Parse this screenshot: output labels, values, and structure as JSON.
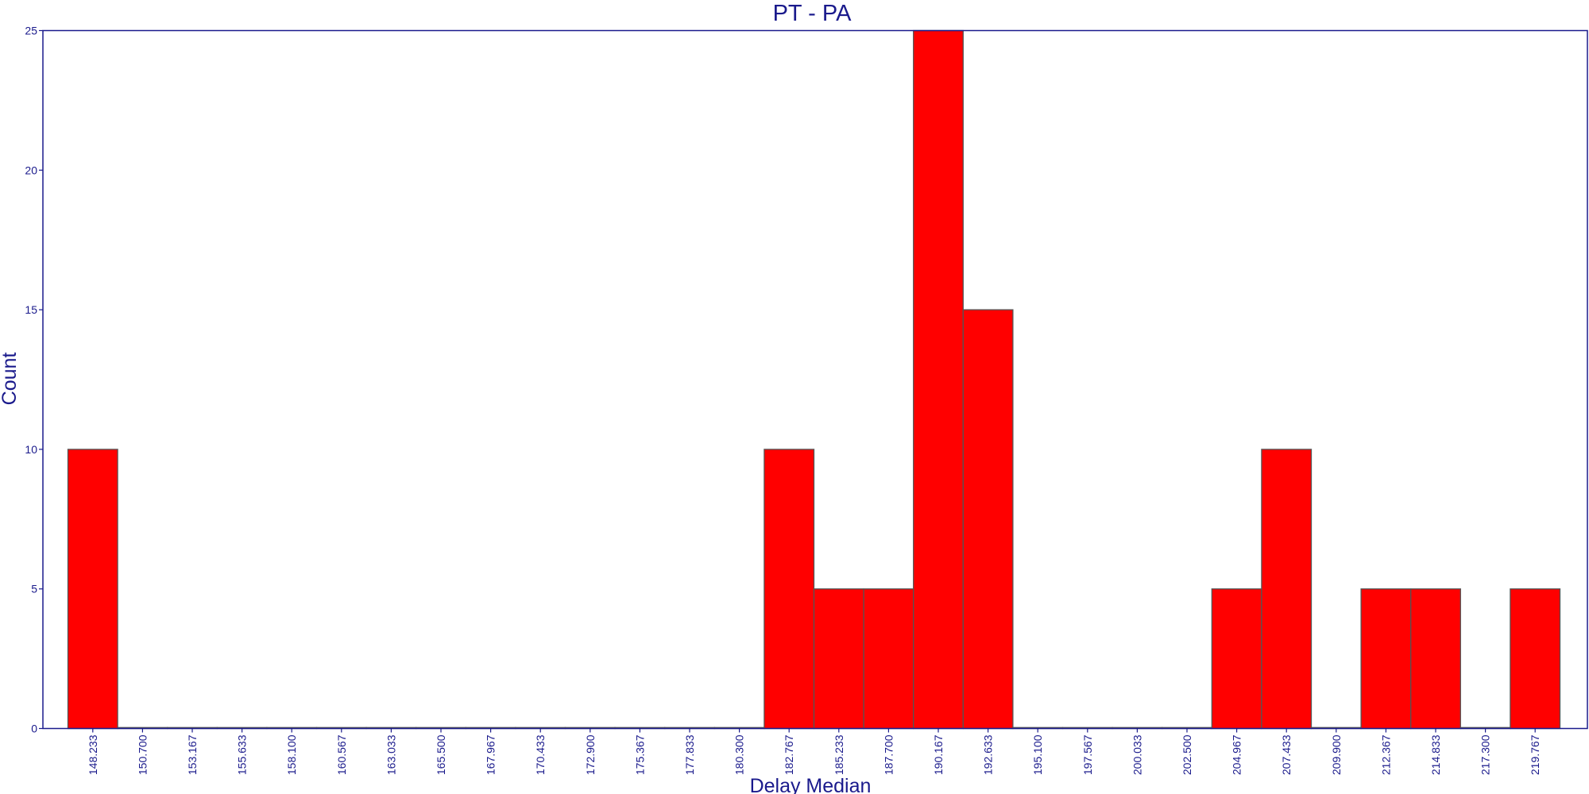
{
  "chart_data": {
    "type": "bar",
    "title": "PT - PA",
    "xlabel": "Delay Median",
    "ylabel": "Count",
    "categories": [
      "148.233",
      "150.700",
      "153.167",
      "155.633",
      "158.100",
      "160.567",
      "163.033",
      "165.500",
      "167.967",
      "170.433",
      "172.900",
      "175.367",
      "177.833",
      "180.300",
      "182.767",
      "185.233",
      "187.700",
      "190.167",
      "192.633",
      "195.100",
      "197.567",
      "200.033",
      "202.500",
      "204.967",
      "207.433",
      "209.900",
      "212.367",
      "214.833",
      "217.300",
      "219.767"
    ],
    "values": [
      10,
      0,
      0,
      0,
      0,
      0,
      0,
      0,
      0,
      0,
      0,
      0,
      0,
      0,
      10,
      5,
      5,
      25,
      15,
      0,
      0,
      0,
      0,
      5,
      10,
      0,
      5,
      5,
      0,
      5
    ],
    "ylim": [
      0,
      25
    ],
    "yticks": [
      "0",
      "5",
      "10",
      "15",
      "20",
      "25"
    ],
    "grid": false,
    "colors": {
      "bar": "#ff0000",
      "text": "#1a1a8c",
      "frame": "#1a1a8c"
    }
  }
}
